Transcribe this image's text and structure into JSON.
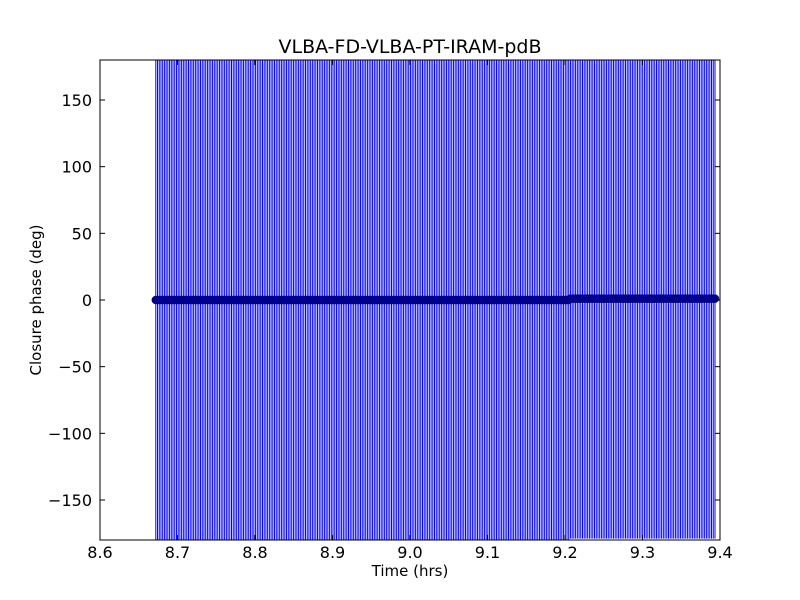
{
  "chart_data": {
    "type": "scatter",
    "title": "VLBA-FD-VLBA-PT-IRAM-pdB",
    "xlabel": "Time (hrs)",
    "ylabel": "Closure phase (deg)",
    "xlim": [
      8.6,
      9.4
    ],
    "ylim": [
      -180,
      180
    ],
    "xticks": [
      8.6,
      8.7,
      8.8,
      8.9,
      9.0,
      9.1,
      9.2,
      9.3,
      9.4
    ],
    "xtick_labels": [
      "8.6",
      "8.7",
      "8.8",
      "8.9",
      "9.0",
      "9.1",
      "9.2",
      "9.3",
      "9.4"
    ],
    "yticks": [
      150,
      100,
      50,
      0,
      -50,
      -100,
      -150
    ],
    "ytick_labels": [
      "150",
      "100",
      "50",
      "0",
      "−50",
      "−100",
      "−150"
    ],
    "grid": false,
    "series": [
      {
        "x_start": 8.672,
        "x_end": 9.394,
        "x_step": 0.00222,
        "segments": [
          {
            "x_from": 8.672,
            "x_to": 9.205,
            "y": 0.0
          },
          {
            "x_from": 9.205,
            "x_to": 9.394,
            "y": 1.0
          }
        ],
        "error": 180,
        "marker": "circle",
        "color": "#0000ff",
        "marker_color": "#00008b"
      }
    ]
  }
}
